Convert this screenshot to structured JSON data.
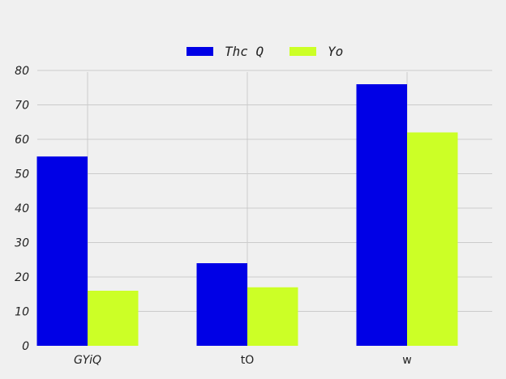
{
  "chart_data": {
    "type": "bar",
    "title": "",
    "xlabel": "",
    "ylabel": "",
    "categories": [
      "GYiQ",
      "tO",
      "w"
    ],
    "series": [
      {
        "name": "Thc Q",
        "values": [
          55,
          24,
          76
        ],
        "color": "#0000e6"
      },
      {
        "name": "Yo",
        "values": [
          16,
          17,
          62
        ],
        "color": "#ccff26"
      }
    ],
    "ylim": [
      0,
      80
    ],
    "yticks": [
      0,
      10,
      20,
      30,
      40,
      50,
      60,
      70,
      80
    ],
    "grid": true,
    "legend_position": "top-center",
    "background": "#f0f0f0"
  }
}
